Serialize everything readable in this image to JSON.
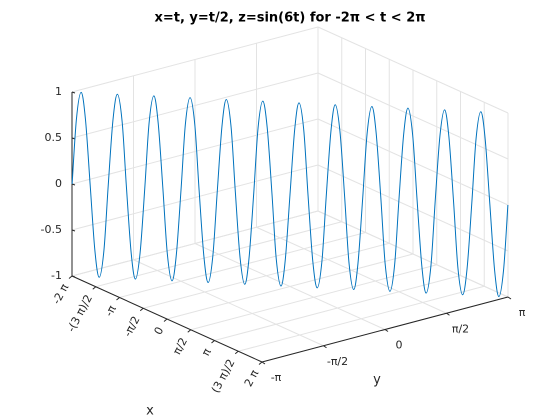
{
  "chart_data": {
    "type": "line3d",
    "title": "x=t, y=t/2, z=sin(6t) for -2π < t < 2π",
    "xlabel": "x",
    "ylabel": "y",
    "color": "#0072bd",
    "grid": true,
    "xlim": [
      -6.283,
      6.283
    ],
    "ylim": [
      -3.142,
      3.142
    ],
    "zlim": [
      -1,
      1
    ],
    "xticks": [
      {
        "value": -6.283,
        "label": "-2 π"
      },
      {
        "value": -4.712,
        "label": "-(3 π)/2"
      },
      {
        "value": -3.142,
        "label": "-π"
      },
      {
        "value": -1.571,
        "label": "-π/2"
      },
      0,
      {
        "value": 1.571,
        "label": "π/2"
      },
      {
        "value": 3.142,
        "label": "π"
      },
      {
        "value": 4.712,
        "label": "(3 π)/2"
      },
      {
        "value": 6.283,
        "label": "2 π"
      }
    ],
    "yticks": [
      {
        "value": -3.142,
        "label": "-π"
      },
      {
        "value": -1.571,
        "label": "-π/2"
      },
      0,
      {
        "value": 1.571,
        "label": "π/2"
      },
      {
        "value": 3.142,
        "label": "π"
      }
    ],
    "zticks": [
      -1,
      -0.5,
      0,
      0.5,
      1
    ],
    "x": [
      -6.28,
      -6.15,
      -6.02,
      -5.89,
      -5.76,
      -5.63,
      -5.5,
      -5.37,
      -5.24,
      -5.11,
      -4.97,
      -4.84,
      -4.71,
      -4.58,
      -4.45,
      -4.32,
      -4.19,
      -4.06,
      -3.93,
      -3.8,
      -3.67,
      -3.53,
      -3.4,
      -3.27,
      -3.14,
      -3.01,
      -2.88,
      -2.75,
      -2.62,
      -2.49,
      -2.36,
      -2.23,
      -2.09,
      -1.96,
      -1.83,
      -1.7,
      -1.57,
      -1.44,
      -1.31,
      -1.18,
      -1.05,
      -0.92,
      -0.79,
      -0.65,
      -0.52,
      -0.39,
      -0.26,
      -0.13,
      0,
      0.13,
      0.26,
      0.39,
      0.52,
      0.65,
      0.79,
      0.92,
      1.05,
      1.18,
      1.31,
      1.44,
      1.57,
      1.7,
      1.83,
      1.96,
      2.09,
      2.23,
      2.36,
      2.49,
      2.62,
      2.75,
      2.88,
      3.01,
      3.14,
      3.27,
      3.4,
      3.53,
      3.67,
      3.8,
      3.93,
      4.06,
      4.19,
      4.32,
      4.45,
      4.58,
      4.71,
      4.84,
      4.97,
      5.11,
      5.24,
      5.37,
      5.5,
      5.63,
      5.76,
      5.89,
      6.02,
      6.15,
      6.28
    ],
    "y": [
      -3.14,
      -3.08,
      -3.01,
      -2.95,
      -2.88,
      -2.81,
      -2.75,
      -2.68,
      -2.62,
      -2.55,
      -2.49,
      -2.42,
      -2.36,
      -2.29,
      -2.23,
      -2.16,
      -2.09,
      -2.03,
      -1.96,
      -1.9,
      -1.83,
      -1.77,
      -1.7,
      -1.64,
      -1.57,
      -1.51,
      -1.44,
      -1.37,
      -1.31,
      -1.24,
      -1.18,
      -1.11,
      -1.05,
      -0.98,
      -0.92,
      -0.85,
      -0.79,
      -0.72,
      -0.65,
      -0.59,
      -0.52,
      -0.46,
      -0.39,
      -0.33,
      -0.26,
      -0.2,
      -0.13,
      -0.07,
      0,
      0.07,
      0.13,
      0.2,
      0.26,
      0.33,
      0.39,
      0.46,
      0.52,
      0.59,
      0.65,
      0.72,
      0.79,
      0.85,
      0.92,
      0.98,
      1.05,
      1.11,
      1.18,
      1.24,
      1.31,
      1.37,
      1.44,
      1.51,
      1.57,
      1.64,
      1.7,
      1.77,
      1.83,
      1.9,
      1.96,
      2.03,
      2.09,
      2.16,
      2.23,
      2.29,
      2.36,
      2.42,
      2.49,
      2.55,
      2.62,
      2.68,
      2.75,
      2.81,
      2.88,
      2.95,
      3.01,
      3.08,
      3.14
    ],
    "z": [
      0,
      0.71,
      1,
      0.71,
      0,
      -0.71,
      -1,
      -0.71,
      0,
      0.71,
      1,
      0.71,
      0,
      -0.71,
      -1,
      -0.71,
      0,
      0.71,
      1,
      0.71,
      0,
      -0.71,
      -1,
      -0.71,
      0,
      0.71,
      1,
      0.71,
      0,
      -0.71,
      -1,
      -0.71,
      0,
      0.71,
      1,
      0.71,
      0,
      -0.71,
      -1,
      -0.71,
      0,
      0.71,
      1,
      0.71,
      0,
      -0.71,
      -1,
      -0.71,
      0,
      0.71,
      1,
      0.71,
      0,
      -0.71,
      -1,
      -0.71,
      0,
      0.71,
      1,
      0.71,
      0,
      -0.71,
      -1,
      -0.71,
      0,
      0.71,
      1,
      0.71,
      0,
      -0.71,
      -1,
      -0.71,
      0,
      0.71,
      1,
      0.71,
      0,
      -0.71,
      -1,
      -0.71,
      0,
      0.71,
      1,
      0.71,
      0,
      -0.71,
      -1,
      -0.71,
      0,
      0.71,
      1,
      0.71,
      0,
      -0.71,
      -1,
      -0.71,
      0
    ]
  }
}
